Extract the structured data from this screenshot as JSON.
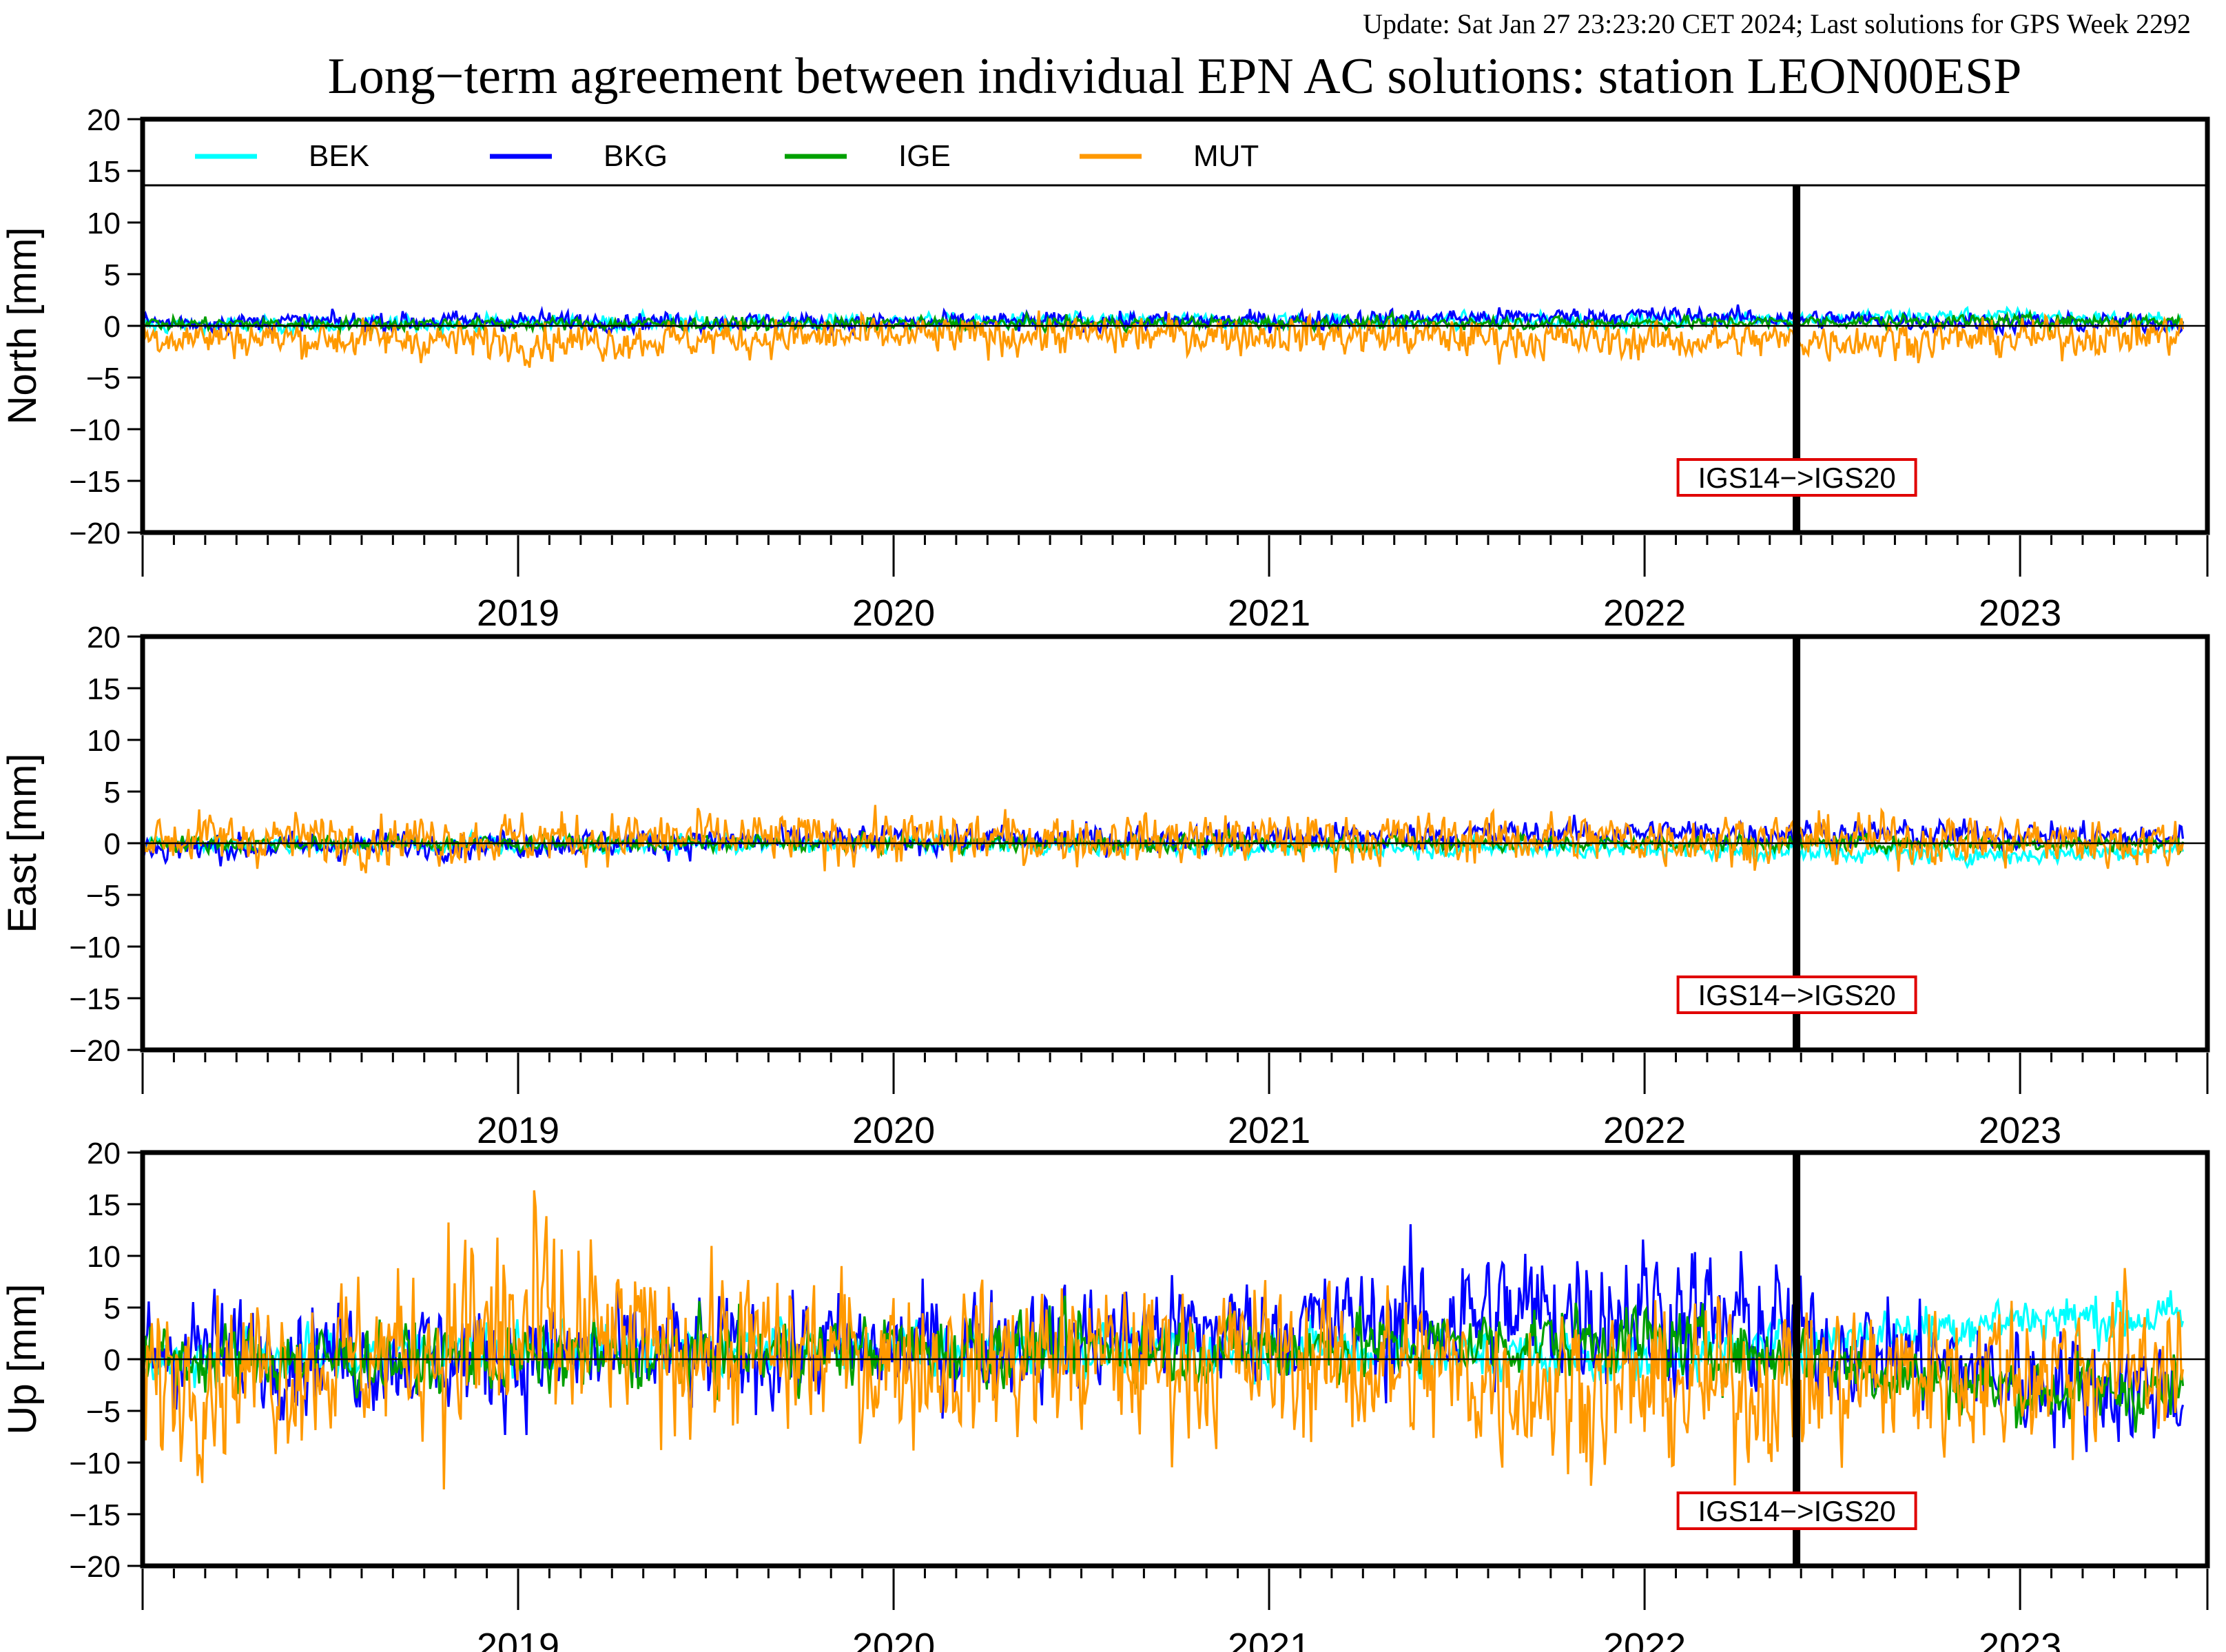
{
  "update_text": "Update: Sat Jan 27 23:23:20 CET 2024; Last solutions for GPS Week 2292",
  "title": "Long−term agreement between individual EPN AC solutions: station LEON00ESP",
  "colors": {
    "BEK": "#00ffff",
    "BKG": "#0000ff",
    "IGE": "#00a000",
    "MUT": "#ff9900",
    "update": "#8b0000",
    "marker_box": "#e00000"
  },
  "legend": [
    "BEK",
    "BKG",
    "IGE",
    "MUT"
  ],
  "change_label": "IGS14−>IGS20",
  "chart_data": {
    "type": "line",
    "x_range": [
      "2018-07-01",
      "2023-12-31"
    ],
    "x_tick_labels": [
      "2019",
      "2020",
      "2021",
      "2022",
      "2023"
    ],
    "frame_change_date": "2022-11-27",
    "panels": [
      {
        "ylabel": "North [mm]",
        "ylim": [
          -20,
          20
        ],
        "yticks": [
          "20",
          "15",
          "10",
          "5",
          "0",
          "−5",
          "−10",
          "−15",
          "−20"
        ],
        "series": [
          {
            "name": "BEK",
            "points": [
              [
                "2018-07",
                "0"
              ],
              [
                "2019-07",
                "0.3"
              ],
              [
                "2020-07",
                "0.4"
              ],
              [
                "2021-07",
                "0.5"
              ],
              [
                "2022-07",
                "0.5"
              ],
              [
                "2023-07",
                "1.0"
              ],
              [
                "2023-12",
                "0.4"
              ]
            ]
          },
          {
            "name": "BKG",
            "points": [
              [
                "2018-07",
                "0.3"
              ],
              [
                "2019-07",
                "0.5"
              ],
              [
                "2020-07",
                "0.3"
              ],
              [
                "2021-07",
                "0.5"
              ],
              [
                "2022-07",
                "1.0"
              ],
              [
                "2023-07",
                "0.3"
              ],
              [
                "2023-12",
                "0.3"
              ]
            ]
          },
          {
            "name": "IGE",
            "points": [
              [
                "2018-07",
                "0.2"
              ],
              [
                "2019-07",
                "0.2"
              ],
              [
                "2020-07",
                "0.2"
              ],
              [
                "2021-07",
                "0.3"
              ],
              [
                "2022-07",
                "0.3"
              ],
              [
                "2023-07",
                "0.5"
              ],
              [
                "2023-12",
                "0.5"
              ]
            ]
          },
          {
            "name": "MUT",
            "points": [
              [
                "2018-07",
                "-1.0"
              ],
              [
                "2019-07",
                "-1.5"
              ],
              [
                "2020-07",
                "-1.0"
              ],
              [
                "2021-07",
                "-0.8"
              ],
              [
                "2022-07",
                "-1.5"
              ],
              [
                "2023-07",
                "-1.2"
              ],
              [
                "2023-12",
                "-0.8"
              ]
            ]
          }
        ]
      },
      {
        "ylabel": "East [mm]",
        "ylim": [
          -20,
          20
        ],
        "yticks": [
          "20",
          "15",
          "10",
          "5",
          "0",
          "−5",
          "−10",
          "−15",
          "−20"
        ],
        "series": [
          {
            "name": "BEK",
            "points": [
              [
                "2018-07",
                "0"
              ],
              [
                "2019-07",
                "-0.2"
              ],
              [
                "2020-07",
                "0"
              ],
              [
                "2021-07",
                "-0.3"
              ],
              [
                "2022-07",
                "-0.5"
              ],
              [
                "2023-07",
                "-1.2"
              ],
              [
                "2023-12",
                "-0.5"
              ]
            ]
          },
          {
            "name": "BKG",
            "points": [
              [
                "2018-07",
                "-0.5"
              ],
              [
                "2019-07",
                "0"
              ],
              [
                "2020-07",
                "0.3"
              ],
              [
                "2021-07",
                "0.5"
              ],
              [
                "2022-07",
                "1.0"
              ],
              [
                "2023-07",
                "0.8"
              ],
              [
                "2023-12",
                "0.5"
              ]
            ]
          },
          {
            "name": "IGE",
            "points": [
              [
                "2018-07",
                "0"
              ],
              [
                "2019-07",
                "0"
              ],
              [
                "2020-07",
                "0"
              ],
              [
                "2021-07",
                "0"
              ],
              [
                "2022-07",
                "0"
              ],
              [
                "2023-07",
                "0"
              ],
              [
                "2023-12",
                "0"
              ]
            ]
          },
          {
            "name": "MUT",
            "points": [
              [
                "2018-07",
                "0.5"
              ],
              [
                "2019-07",
                "0.5"
              ],
              [
                "2020-07",
                "0.5"
              ],
              [
                "2021-07",
                "0.5"
              ],
              [
                "2022-07",
                "0.5"
              ],
              [
                "2023-07",
                "0.3"
              ],
              [
                "2023-12",
                "0"
              ]
            ]
          }
        ]
      },
      {
        "ylabel": "Up [mm]",
        "ylim": [
          -20,
          20
        ],
        "yticks": [
          "20",
          "15",
          "10",
          "5",
          "0",
          "−5",
          "−10",
          "−15",
          "−20"
        ],
        "series": [
          {
            "name": "BEK",
            "points": [
              [
                "2018-07",
                "0"
              ],
              [
                "2019-07",
                "1"
              ],
              [
                "2020-07",
                "1"
              ],
              [
                "2021-07",
                "1"
              ],
              [
                "2022-07",
                "0"
              ],
              [
                "2023-07",
                "4"
              ],
              [
                "2023-12",
                "4"
              ]
            ]
          },
          {
            "name": "BKG",
            "points": [
              [
                "2018-07",
                "1"
              ],
              [
                "2019-07",
                "0"
              ],
              [
                "2020-07",
                "1"
              ],
              [
                "2021-07",
                "3"
              ],
              [
                "2022-07",
                "5"
              ],
              [
                "2023-07",
                "-2"
              ],
              [
                "2023-12",
                "-3"
              ]
            ]
          },
          {
            "name": "IGE",
            "points": [
              [
                "2018-07",
                "0"
              ],
              [
                "2019-07",
                "0"
              ],
              [
                "2020-07",
                "1"
              ],
              [
                "2021-07",
                "1"
              ],
              [
                "2022-07",
                "2"
              ],
              [
                "2023-07",
                "-3"
              ],
              [
                "2023-12",
                "-3"
              ]
            ]
          },
          {
            "name": "MUT",
            "points": [
              [
                "2018-07",
                "-2"
              ],
              [
                "2019-07",
                "2"
              ],
              [
                "2020-07",
                "0"
              ],
              [
                "2021-07",
                "0"
              ],
              [
                "2022-07",
                "-3"
              ],
              [
                "2023-07",
                "-1"
              ],
              [
                "2023-12",
                "0"
              ]
            ]
          }
        ]
      }
    ]
  }
}
